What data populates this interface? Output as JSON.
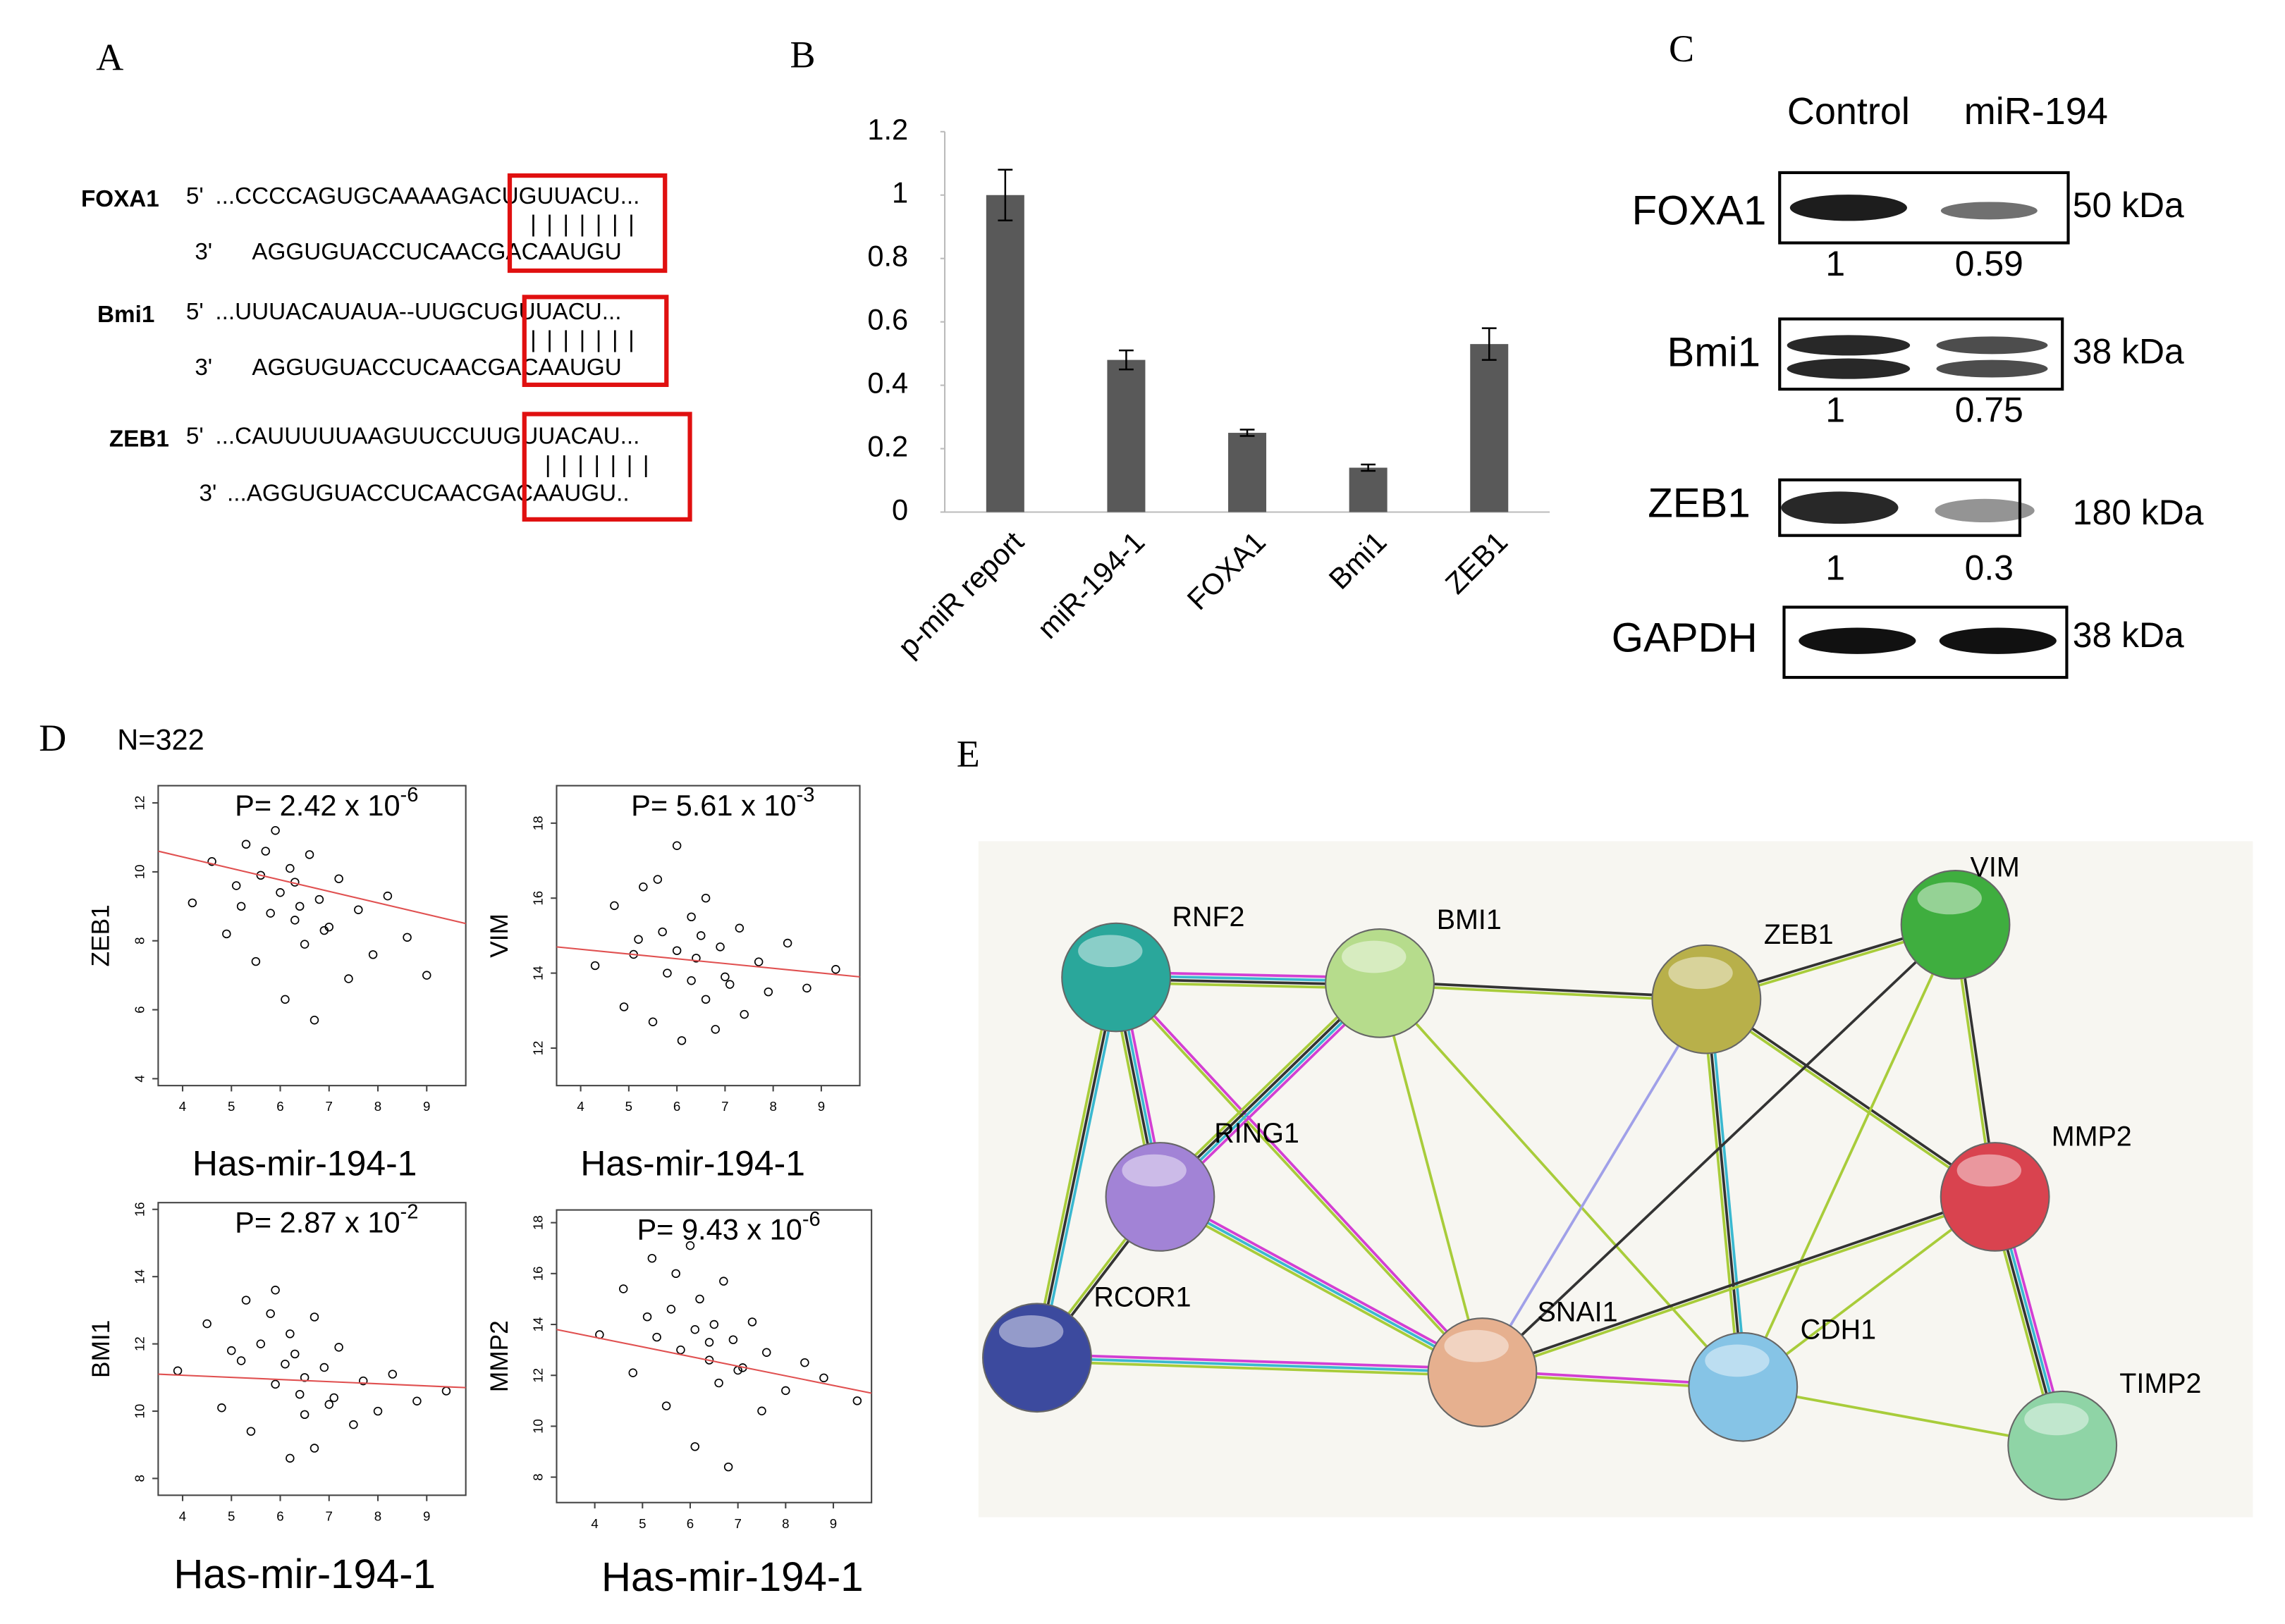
{
  "panel_labels": {
    "a": "A",
    "b": "B",
    "c": "C",
    "d": "D",
    "e": "E"
  },
  "alignments": [
    {
      "gene": "FOXA1",
      "target_end": "5'",
      "target": "...CCCCAGUGCAAAAGACUGUUACU...",
      "pairing": "|||||||",
      "mirna_end": "3'",
      "mirna": "AGGUGUACCUCAACGACAAUGU"
    },
    {
      "gene": "Bmi1",
      "target_end": "5'",
      "target": "...UUUACAUAUA--UUGCUGUUACU...",
      "pairing": "|||||||",
      "mirna_end": "3'",
      "mirna": "AGGUGUACCUCAACGACAAUGU"
    },
    {
      "gene": "ZEB1",
      "target_end": "5'",
      "target": "...CAUUUUUAAGUUCCUUGUUACAU...",
      "pairing": "|||||||",
      "mirna_end": "3'",
      "mirna": "...AGGUGUACCUCAACGACAAUGU.."
    }
  ],
  "chart_data": [
    {
      "type": "bar",
      "categories": [
        "p-miR report",
        "miR-194-1",
        "FOXA1",
        "Bmi1",
        "ZEB1"
      ],
      "values": [
        1,
        0.48,
        0.25,
        0.14,
        0.53
      ],
      "errors": [
        0.08,
        0.03,
        0.01,
        0.01,
        0.05
      ],
      "color": "#595959",
      "ylim": [
        0,
        1.2
      ],
      "yticks": [
        0,
        0.2,
        0.4,
        0.6,
        0.8,
        1,
        1.2
      ]
    },
    {
      "type": "scatter",
      "p_label": "P= 2.42 x 10",
      "p_exponent": "-6",
      "x_label": "Has-mir-194-1",
      "y_label": "ZEB1",
      "xlim": [
        3.5,
        9.8
      ],
      "ylim": [
        3.8,
        12.5
      ],
      "xticks": [
        4,
        5,
        6,
        7,
        8,
        9
      ],
      "yticks": [
        4,
        6,
        8,
        10,
        12
      ],
      "x": [
        4.2,
        4.6,
        4.9,
        5.1,
        5.3,
        5.5,
        5.6,
        5.8,
        5.9,
        6.0,
        6.1,
        6.2,
        6.3,
        6.4,
        6.5,
        6.6,
        6.7,
        6.8,
        7.0,
        7.2,
        7.4,
        7.6,
        7.9,
        8.2,
        8.6,
        9.0,
        5.2,
        5.7,
        6.3,
        6.9
      ],
      "y": [
        9.1,
        10.3,
        8.2,
        9.6,
        10.8,
        7.4,
        9.9,
        8.8,
        11.2,
        9.4,
        6.3,
        10.1,
        8.6,
        9.0,
        7.9,
        10.5,
        5.7,
        9.2,
        8.4,
        9.8,
        6.9,
        8.9,
        7.6,
        9.3,
        8.1,
        7.0,
        9.0,
        10.6,
        9.7,
        8.3
      ],
      "fit": {
        "x": [
          3.5,
          9.8
        ],
        "y": [
          10.6,
          8.5
        ]
      },
      "color": "#000000",
      "fit_color": "#e05050"
    },
    {
      "type": "scatter",
      "p_label": "P= 5.61 x 10",
      "p_exponent": "-3",
      "x_label": "Has-mir-194-1",
      "y_label": "VIM",
      "xlim": [
        3.5,
        9.8
      ],
      "ylim": [
        11,
        19
      ],
      "xticks": [
        4,
        5,
        6,
        7,
        8,
        9
      ],
      "yticks": [
        12,
        14,
        16,
        18
      ],
      "x": [
        4.3,
        4.7,
        4.9,
        5.2,
        5.3,
        5.5,
        5.7,
        5.8,
        6.0,
        6.0,
        6.1,
        6.3,
        6.3,
        6.4,
        6.6,
        6.6,
        6.8,
        6.9,
        7.0,
        7.3,
        7.4,
        7.7,
        7.9,
        8.3,
        8.7,
        9.3,
        5.1,
        5.6,
        6.5,
        7.1
      ],
      "y": [
        14.2,
        15.8,
        13.1,
        14.9,
        16.3,
        12.7,
        15.1,
        14.0,
        17.4,
        14.6,
        12.2,
        15.5,
        13.8,
        14.4,
        13.3,
        16.0,
        12.5,
        14.7,
        13.9,
        15.2,
        12.9,
        14.3,
        13.5,
        14.8,
        13.6,
        14.1,
        14.5,
        16.5,
        15.0,
        13.7
      ],
      "fit": {
        "x": [
          3.5,
          9.8
        ],
        "y": [
          14.7,
          13.9
        ]
      },
      "color": "#000000",
      "fit_color": "#e05050"
    },
    {
      "type": "scatter",
      "p_label": "P= 2.87 x 10",
      "p_exponent": "-2",
      "x_label": "Has-mir-194-1",
      "y_label": "BMI1",
      "xlim": [
        3.5,
        9.8
      ],
      "ylim": [
        7.5,
        16.2
      ],
      "xticks": [
        4,
        5,
        6,
        7,
        8,
        9
      ],
      "yticks": [
        8,
        10,
        12,
        14,
        16
      ],
      "x": [
        3.9,
        4.5,
        4.8,
        5.0,
        5.3,
        5.4,
        5.6,
        5.9,
        5.9,
        6.1,
        6.2,
        6.2,
        6.4,
        6.5,
        6.5,
        6.7,
        6.7,
        6.9,
        7.1,
        7.2,
        7.5,
        7.7,
        8.0,
        8.3,
        8.8,
        9.4,
        5.2,
        5.8,
        6.3,
        7.0
      ],
      "y": [
        11.2,
        12.6,
        10.1,
        11.8,
        13.3,
        9.4,
        12.0,
        10.8,
        13.6,
        11.4,
        8.6,
        12.3,
        10.5,
        11.0,
        9.9,
        12.8,
        8.9,
        11.3,
        10.4,
        11.9,
        9.6,
        10.9,
        10.0,
        11.1,
        10.3,
        10.6,
        11.5,
        12.9,
        11.7,
        10.2
      ],
      "fit": {
        "x": [
          3.5,
          9.8
        ],
        "y": [
          11.1,
          10.7
        ]
      },
      "color": "#000000",
      "fit_color": "#e05050"
    },
    {
      "type": "scatter",
      "p_label": "P= 9.43 x 10",
      "p_exponent": "-6",
      "x_label": "Has-mir-194-1",
      "y_label": "MMP2",
      "xlim": [
        3.2,
        9.8
      ],
      "ylim": [
        7,
        18.5
      ],
      "xticks": [
        4,
        5,
        6,
        7,
        8,
        9
      ],
      "yticks": [
        8,
        10,
        12,
        14,
        16,
        18
      ],
      "x": [
        4.1,
        4.6,
        4.8,
        5.1,
        5.2,
        5.5,
        5.6,
        5.8,
        6.0,
        6.1,
        6.1,
        6.2,
        6.4,
        6.4,
        6.6,
        6.7,
        6.8,
        6.9,
        7.1,
        7.3,
        7.5,
        7.6,
        8.0,
        8.4,
        8.8,
        9.5,
        5.3,
        5.7,
        6.5,
        7.0
      ],
      "y": [
        13.6,
        15.4,
        12.1,
        14.3,
        16.6,
        10.8,
        14.6,
        13.0,
        17.1,
        13.8,
        9.2,
        15.0,
        12.6,
        13.3,
        11.7,
        15.7,
        8.4,
        13.4,
        12.3,
        14.1,
        10.6,
        12.9,
        11.4,
        12.5,
        11.9,
        11.0,
        13.5,
        16.0,
        14.0,
        12.2
      ],
      "fit": {
        "x": [
          3.2,
          9.8
        ],
        "y": [
          13.8,
          11.3
        ]
      },
      "color": "#000000",
      "fit_color": "#e05050"
    }
  ],
  "sample_size": "N=322",
  "western_blot": {
    "columns": [
      "Control",
      "miR-194"
    ],
    "rows": [
      {
        "protein": "FOXA1",
        "size": "50 kDa",
        "ratios": [
          1,
          0.59
        ]
      },
      {
        "protein": "Bmi1",
        "size": "38 kDa",
        "ratios": [
          1,
          0.75
        ]
      },
      {
        "protein": "ZEB1",
        "size": "180 kDa",
        "ratios": [
          1,
          0.3
        ]
      },
      {
        "protein": "GAPDH",
        "size": "38 kDa"
      }
    ]
  },
  "network": {
    "nodes": [
      {
        "label": "RNF2",
        "color": "#2aa79b"
      },
      {
        "label": "BMI1",
        "color": "#b6dc8c"
      },
      {
        "label": "ZEB1",
        "color": "#b8b04a"
      },
      {
        "label": "VIM",
        "color": "#3fae3f"
      },
      {
        "label": "RING1",
        "color": "#a283d6"
      },
      {
        "label": "MMP2",
        "color": "#d9434f"
      },
      {
        "label": "RCOR1",
        "color": "#3c4a9e"
      },
      {
        "label": "SNAI1",
        "color": "#e6b08f"
      },
      {
        "label": "CDH1",
        "color": "#86c4e6"
      },
      {
        "label": "TIMP2",
        "color": "#8fd4a6"
      }
    ]
  }
}
